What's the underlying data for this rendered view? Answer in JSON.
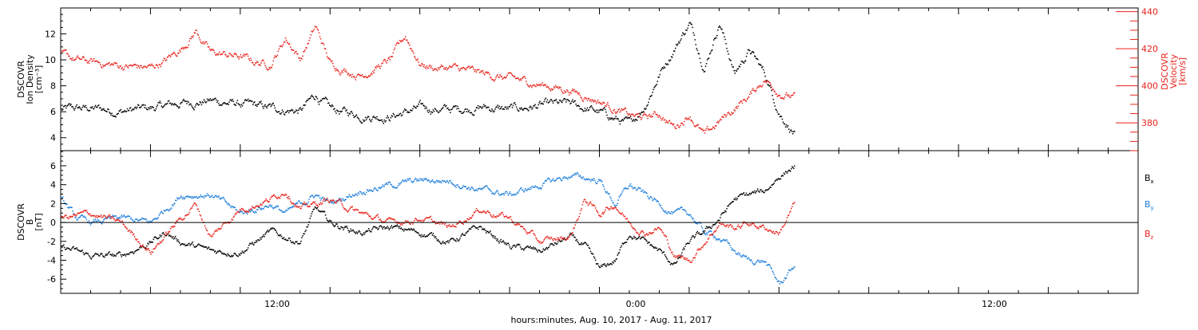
{
  "chart_data": {
    "type": "scatter",
    "xlabel": "hours:minutes, Aug. 10, 2017 - Aug. 11, 2017",
    "x_tick_labels": [
      "12:00",
      "0:00",
      "12:00"
    ],
    "x_range_hours": [
      -18,
      18
    ],
    "panels": [
      {
        "id": "density-velocity",
        "left_axis": {
          "label_lines": [
            "DSCOVR",
            "Ion Density",
            "[cm⁻³]"
          ],
          "ylim": [
            3,
            14
          ],
          "ticks": [
            4,
            6,
            8,
            10,
            12
          ],
          "color": "#000000"
        },
        "right_axis": {
          "label_lines": [
            "DSCOVR",
            "Velocity",
            "[km/s]"
          ],
          "ylim": [
            365,
            442
          ],
          "ticks": [
            380,
            400,
            420,
            440
          ],
          "color": "#e8221b"
        },
        "series": [
          {
            "key": "density",
            "axis": "left",
            "color": "#000000",
            "x": [
              -18.0,
              -17.0,
              -16.0,
              -15.0,
              -14.0,
              -13.0,
              -12.0,
              -11.0,
              -10.0,
              -9.5,
              -9.0,
              -8.0,
              -7.0,
              -6.0,
              -5.0,
              -4.0,
              -3.0,
              -2.0,
              -1.0,
              -0.5,
              0.0,
              0.5,
              1.0,
              1.5,
              2.0,
              2.5,
              3.0,
              3.5,
              4.0,
              4.5,
              5.0,
              5.5,
              6.0,
              6.5
            ],
            "y": [
              6.2,
              6.3,
              6.1,
              6.3,
              6.7,
              6.9,
              6.6,
              6.3,
              6.1,
              7.3,
              6.2,
              5.8,
              5.7,
              6.3,
              6.2,
              6.4,
              6.2,
              6.5,
              6.6,
              6.3,
              6.0,
              5.5,
              5.0,
              6.5,
              9.0,
              11.0,
              12.9,
              9.5,
              13.0,
              9.0,
              10.8,
              9.0,
              6.0,
              4.4
            ]
          },
          {
            "key": "velocity",
            "axis": "right",
            "color": "#e8221b",
            "x": [
              -18.0,
              -17.5,
              -17.0,
              -16.0,
              -15.0,
              -14.5,
              -14.0,
              -13.5,
              -13.0,
              -12.0,
              -11.5,
              -11.0,
              -10.5,
              -10.0,
              -9.5,
              -9.0,
              -8.0,
              -7.0,
              -6.5,
              -6.0,
              -5.5,
              -5.0,
              -4.0,
              -3.0,
              -2.0,
              -1.0,
              0.0,
              1.0,
              1.5,
              2.0,
              2.5,
              3.0,
              3.5,
              4.0,
              4.5,
              5.0,
              5.5,
              6.0,
              6.5
            ],
            "y": [
              417,
              414,
              413,
              411,
              410,
              414,
              420,
              430,
              418,
              416,
              413,
              412,
              426,
              415,
              432,
              412,
              406,
              414,
              427,
              412,
              410,
              410,
              407,
              404,
              401,
              398,
              392,
              384,
              383,
              385,
              378,
              385,
              373,
              381,
              388,
              395,
              404,
              397,
              394
            ]
          }
        ]
      },
      {
        "id": "magnetic-field",
        "left_axis": {
          "label_lines": [
            "DSCOVR",
            "B",
            "[nT]"
          ],
          "ylim": [
            -7.5,
            7.6
          ],
          "ticks": [
            -6,
            -4,
            -2,
            0,
            2,
            4,
            6
          ],
          "color": "#000000"
        },
        "zero_line": true,
        "legend_placement": "right",
        "legend": [
          {
            "base": "B",
            "sub": "x",
            "color": "#000000"
          },
          {
            "base": "B",
            "sub": "y",
            "color": "#1e7fdc"
          },
          {
            "base": "B",
            "sub": "z",
            "color": "#e8221b"
          }
        ],
        "series": [
          {
            "key": "bx",
            "color": "#000000",
            "x": [
              -18.0,
              -17.5,
              -17.0,
              -16.0,
              -15.0,
              -14.5,
              -14.0,
              -13.0,
              -12.0,
              -11.0,
              -10.0,
              -9.5,
              -9.0,
              -8.0,
              -7.0,
              -6.0,
              -5.0,
              -4.0,
              -3.0,
              -2.0,
              -1.0,
              -0.5,
              0.0,
              0.5,
              1.0,
              1.5,
              2.0,
              2.5,
              3.0,
              3.5,
              4.0,
              4.5,
              5.0,
              5.5,
              6.0,
              6.5
            ],
            "y": [
              -2.5,
              -3.0,
              -3.5,
              -3.5,
              -2.0,
              -1.0,
              -2.0,
              -3.0,
              -3.0,
              -1.0,
              -2.0,
              1.5,
              0.0,
              -1.0,
              -0.5,
              -1.0,
              -2.0,
              -0.5,
              -2.5,
              -3.0,
              -1.5,
              -2.5,
              -5.0,
              -4.0,
              -1.0,
              -2.0,
              -3.0,
              -4.5,
              -2.0,
              -1.0,
              0.5,
              2.5,
              3.0,
              3.3,
              5.0,
              6.0
            ]
          },
          {
            "key": "by",
            "color": "#1e7fdc",
            "x": [
              -18.0,
              -17.5,
              -17.0,
              -16.0,
              -15.0,
              -14.0,
              -13.0,
              -12.5,
              -12.0,
              -11.0,
              -10.5,
              -10.0,
              -9.5,
              -9.0,
              -8.0,
              -7.0,
              -6.0,
              -5.0,
              -4.0,
              -3.0,
              -2.0,
              -1.0,
              0.0,
              0.5,
              1.0,
              1.5,
              2.0,
              2.5,
              3.0,
              3.5,
              4.0,
              4.5,
              5.0,
              5.5,
              6.0,
              6.5
            ],
            "y": [
              2.5,
              0.5,
              0.0,
              0.5,
              0.0,
              3.0,
              3.0,
              2.0,
              1.0,
              2.0,
              1.0,
              2.0,
              3.0,
              2.0,
              3.5,
              4.0,
              4.5,
              4.5,
              3.5,
              3.0,
              4.0,
              5.0,
              4.5,
              2.0,
              4.0,
              3.0,
              2.0,
              1.0,
              1.0,
              -1.0,
              -1.5,
              -3.0,
              -4.0,
              -4.0,
              -6.5,
              -4.5
            ]
          },
          {
            "key": "bz",
            "color": "#e8221b",
            "x": [
              -18.0,
              -17.0,
              -16.0,
              -15.0,
              -14.0,
              -13.5,
              -13.0,
              -12.0,
              -11.0,
              -10.5,
              -10.0,
              -9.0,
              -8.0,
              -7.0,
              -6.0,
              -5.0,
              -4.0,
              -3.0,
              -2.0,
              -1.0,
              -0.5,
              0.0,
              0.5,
              1.0,
              1.5,
              2.0,
              2.5,
              3.0,
              3.5,
              4.0,
              4.5,
              5.0,
              5.5,
              6.0,
              6.5
            ],
            "y": [
              0.5,
              1.0,
              0.0,
              -3.0,
              0.5,
              2.0,
              -1.5,
              1.5,
              2.5,
              3.5,
              1.5,
              2.5,
              1.0,
              0.0,
              0.5,
              -0.5,
              1.5,
              0.5,
              -2.0,
              -1.5,
              2.5,
              1.0,
              2.0,
              0.0,
              -1.0,
              -0.5,
              -3.5,
              -4.0,
              -2.0,
              0.0,
              -0.5,
              0.0,
              -0.5,
              -1.0,
              2.0
            ]
          }
        ]
      }
    ]
  }
}
